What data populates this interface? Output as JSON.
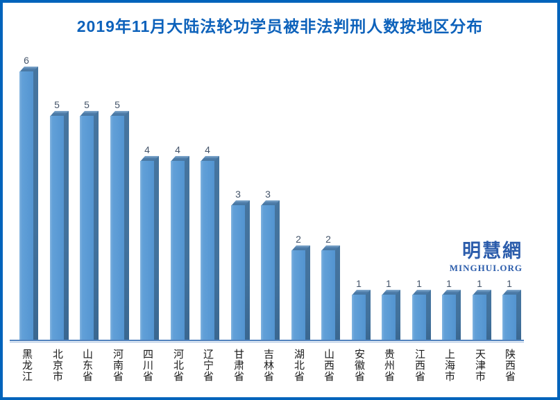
{
  "frame": {
    "border_color": "#0063bb",
    "background_color": "#ffffff"
  },
  "watermark": {
    "cjk": "明慧網",
    "latin": "MINGHUI.ORG",
    "color": "#2b5cab"
  },
  "chart_data": {
    "type": "bar",
    "style": "3d",
    "title": "2019年11月大陆法轮功学员被非法判刑人数按地区分布",
    "title_color": "#0d62bb",
    "categories": [
      "黑龙江",
      "北京市",
      "山东省",
      "河南省",
      "四川省",
      "河北省",
      "辽宁省",
      "甘肃省",
      "吉林省",
      "湖北省",
      "山西省",
      "安徽省",
      "贵州省",
      "江西省",
      "上海市",
      "天津市",
      "陕西省"
    ],
    "values": [
      6,
      5,
      5,
      5,
      4,
      4,
      4,
      3,
      3,
      2,
      2,
      1,
      1,
      1,
      1,
      1,
      1
    ],
    "xlabel": "",
    "ylabel": "",
    "ylim": [
      0,
      6
    ],
    "grid": false,
    "legend": "none",
    "data_labels": true,
    "bar_color": "#5b9bd5",
    "bar_side_color": "#41719c",
    "bar_top_color": "#4d7ca9",
    "axis_color": "#4f81bd",
    "value_label_color": "#44546a",
    "tick_label_color": "#1a1a1a"
  }
}
